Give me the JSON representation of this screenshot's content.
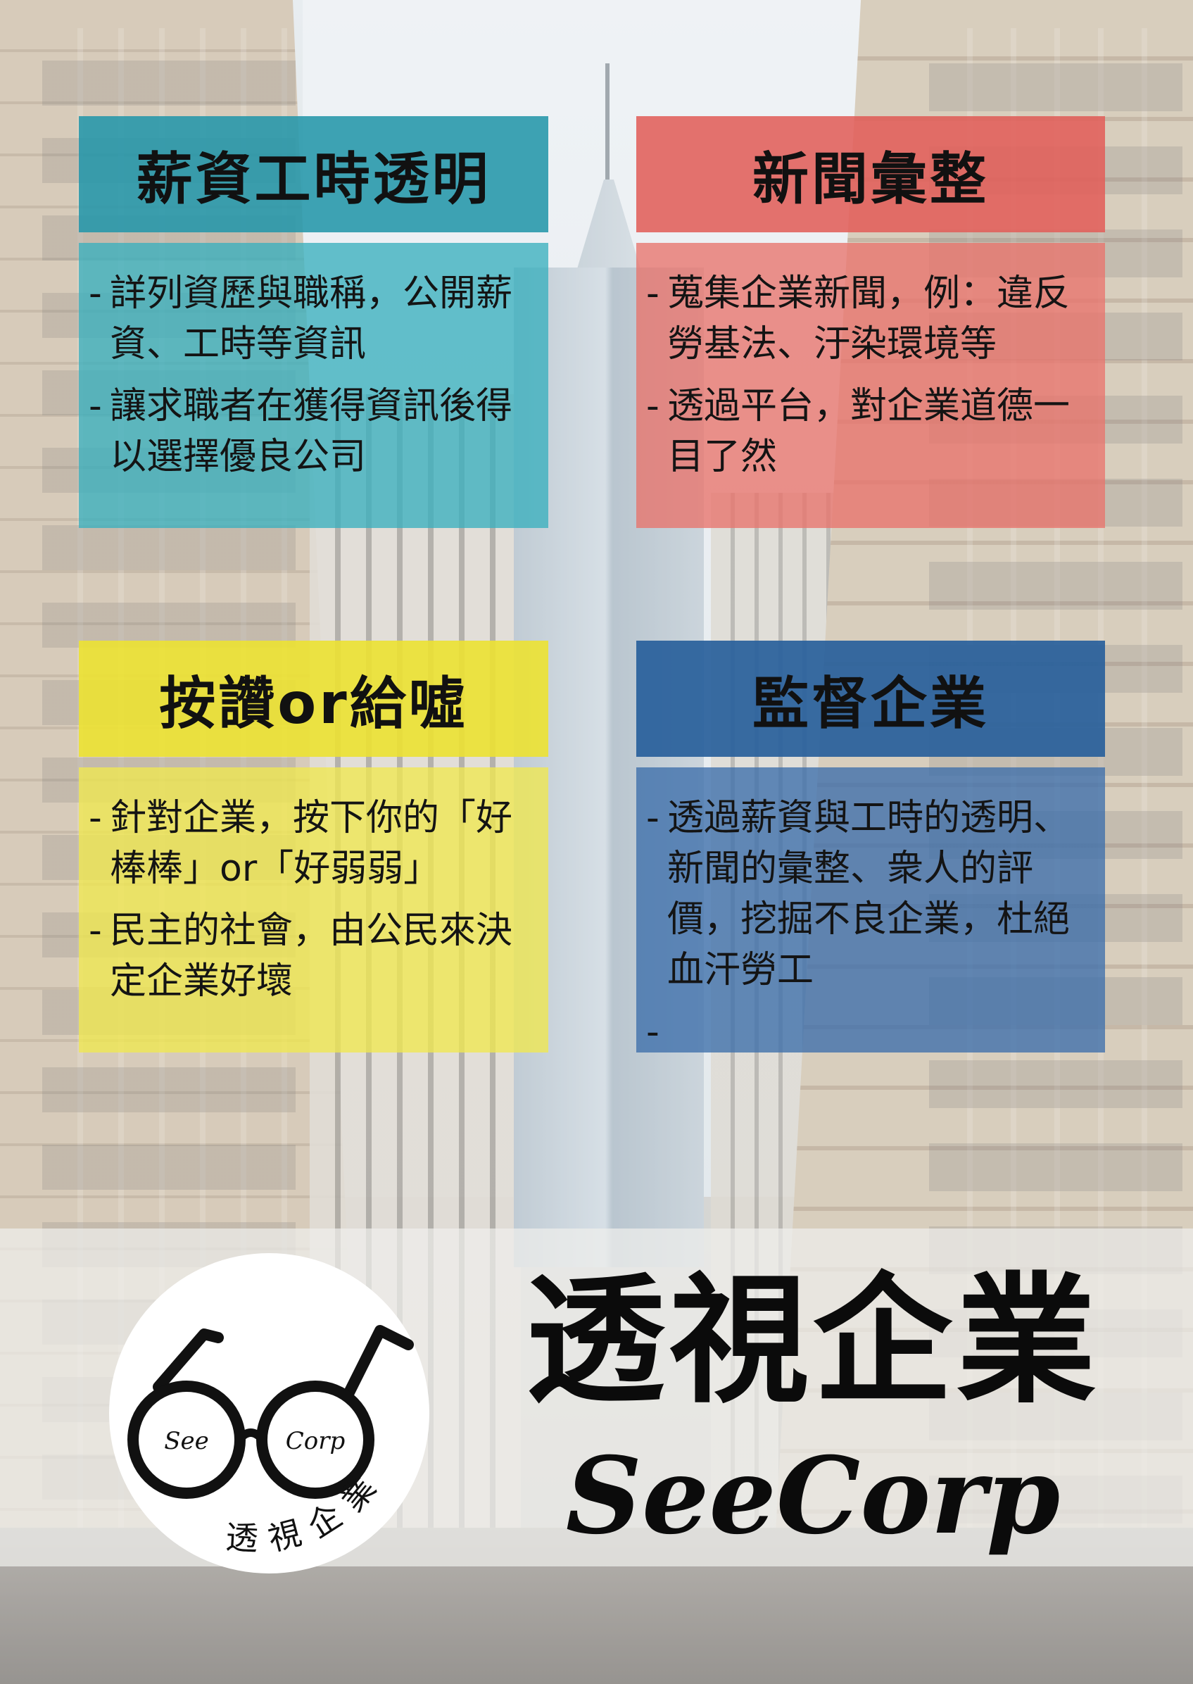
{
  "panels": {
    "salary": {
      "title": "薪資工時透明",
      "bullets": [
        "詳列資歷與職稱，公開薪資、工時等資訊",
        "讓求職者在獲得資訊後得以選擇優良公司"
      ]
    },
    "news": {
      "title": "新聞彙整",
      "bullets": [
        "蒐集企業新聞，例：違反勞基法、汙染環境等",
        "透過平台，對企業道德一目了然"
      ]
    },
    "vote": {
      "title": "按讚or給噓",
      "bullets": [
        "針對企業，按下你的「好棒棒」or「好弱弱」",
        "民主的社會，由公民來決定企業好壞"
      ]
    },
    "monitor": {
      "title": "監督企業",
      "bullets": [
        "透過薪資與工時的透明、新聞的彙整、衆人的評價，挖掘不良企業，杜絕血汗勞工"
      ],
      "trailing": "-"
    }
  },
  "bullet_dash": "-",
  "footer": {
    "brand_cn": "透視企業",
    "brand_en": "SeeCorp",
    "logo": {
      "left_lens": "See",
      "right_lens": "Corp",
      "arc_text": "透視企業",
      "icon": "glasses-icon"
    }
  },
  "colors": {
    "teal": "#2496aa",
    "red": "#e15f5a",
    "yellow": "#ece232",
    "blue": "#285f9b"
  }
}
